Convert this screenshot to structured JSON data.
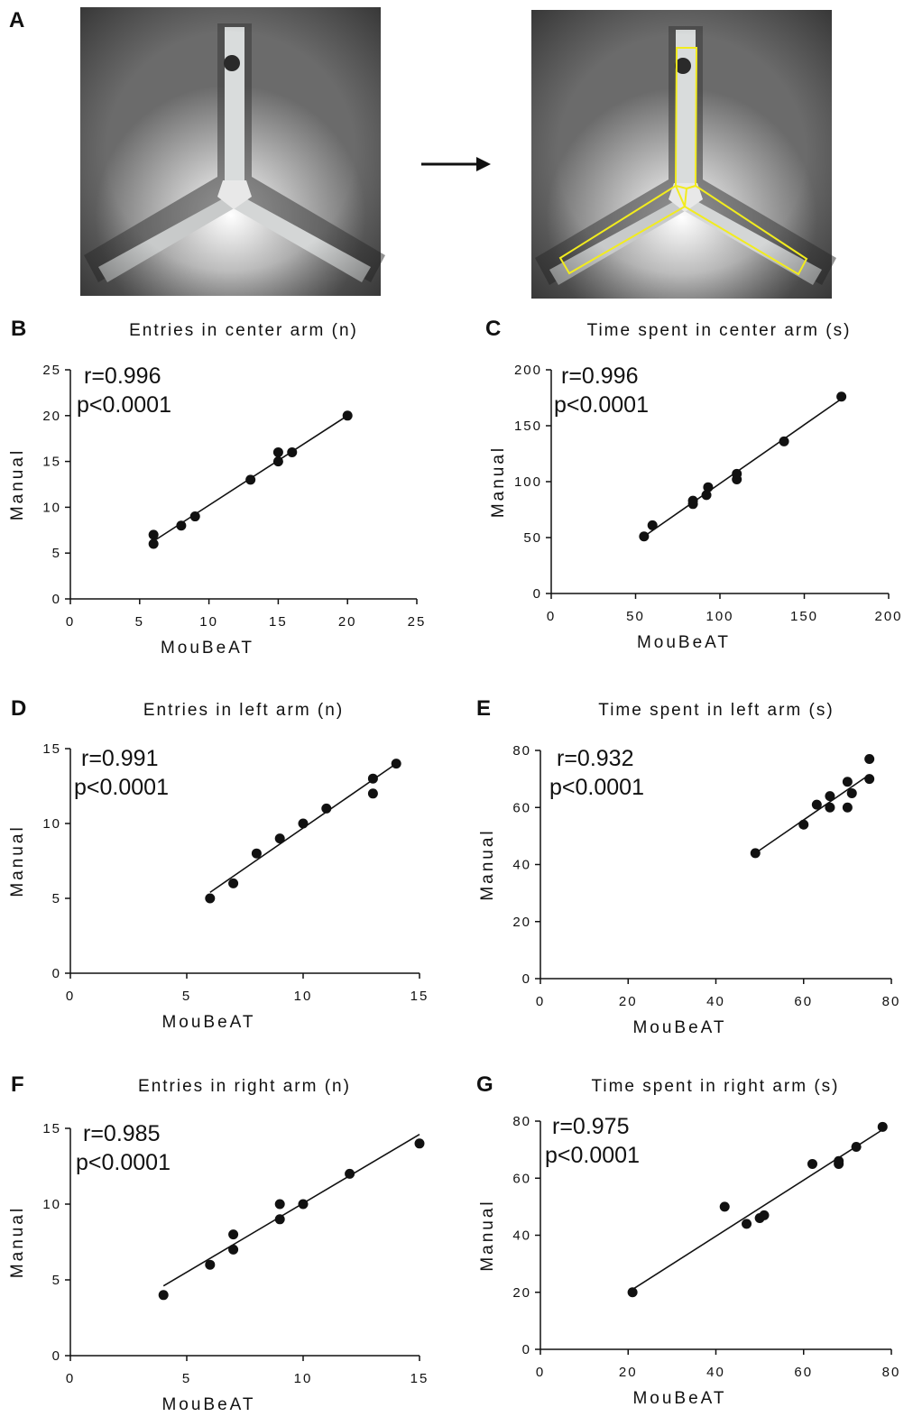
{
  "panel_a": {
    "letter": "A",
    "photos": [
      {
        "name": "ymaze-photo-raw",
        "overlay": false
      },
      {
        "name": "ymaze-photo-zones",
        "overlay": true
      }
    ],
    "arrow": "arrow-right-icon",
    "overlay_color": "#f2ec1e"
  },
  "chart_data": [
    {
      "panel": "B",
      "type": "scatter",
      "title": "Entries in center arm (n)",
      "xlabel": "MouBeAT",
      "ylabel": "Manual",
      "xlim": [
        0,
        25
      ],
      "ylim": [
        0,
        25
      ],
      "xticks": [
        0,
        5,
        10,
        15,
        20,
        25
      ],
      "yticks": [
        0,
        5,
        10,
        15,
        20,
        25
      ],
      "r": "r=0.996",
      "p": "p<0.0001",
      "x": [
        6,
        6,
        8,
        9,
        13,
        15,
        15,
        16,
        20
      ],
      "y": [
        7,
        6,
        8,
        9,
        13,
        16,
        15,
        16,
        20
      ],
      "fit": [
        [
          6,
          6.3
        ],
        [
          20,
          20
        ]
      ]
    },
    {
      "panel": "C",
      "type": "scatter",
      "title": "Time spent in center arm (s)",
      "xlabel": "MouBeAT",
      "ylabel": "Manual",
      "xlim": [
        0,
        200
      ],
      "ylim": [
        0,
        200
      ],
      "xticks": [
        0,
        50,
        100,
        150,
        200
      ],
      "yticks": [
        0,
        50,
        100,
        150,
        200
      ],
      "r": "r=0.996",
      "p": "p<0.0001",
      "x": [
        55,
        60,
        84,
        84,
        92,
        93,
        110,
        110,
        138,
        172
      ],
      "y": [
        51,
        61,
        80,
        83,
        88,
        95,
        102,
        107,
        136,
        176
      ],
      "fit": [
        [
          55,
          51
        ],
        [
          172,
          174
        ]
      ]
    },
    {
      "panel": "D",
      "type": "scatter",
      "title": "Entries in left arm (n)",
      "xlabel": "MouBeAT",
      "ylabel": "Manual",
      "xlim": [
        0,
        15
      ],
      "ylim": [
        0,
        15
      ],
      "xticks": [
        0,
        5,
        10,
        15
      ],
      "yticks": [
        0,
        5,
        10,
        15
      ],
      "r": "r=0.991",
      "p": "p<0.0001",
      "x": [
        6,
        7,
        8,
        9,
        10,
        11,
        13,
        13,
        14
      ],
      "y": [
        5,
        6,
        8,
        9,
        10,
        11,
        13,
        12,
        14
      ],
      "fit": [
        [
          6,
          5.4
        ],
        [
          14,
          14
        ]
      ]
    },
    {
      "panel": "E",
      "type": "scatter",
      "title": "Time spent in left arm (s)",
      "xlabel": "MouBeAT",
      "ylabel": "Manual",
      "xlim": [
        0,
        80
      ],
      "ylim": [
        0,
        80
      ],
      "xticks": [
        0,
        20,
        40,
        60,
        80
      ],
      "yticks": [
        0,
        20,
        40,
        60,
        80
      ],
      "r": "r=0.932",
      "p": "p<0.0001",
      "x": [
        49,
        60,
        63,
        66,
        66,
        70,
        70,
        71,
        75,
        75
      ],
      "y": [
        44,
        54,
        61,
        64,
        60,
        69,
        60,
        65,
        77,
        70
      ],
      "fit": [
        [
          49,
          44
        ],
        [
          75,
          71.5
        ]
      ]
    },
    {
      "panel": "F",
      "type": "scatter",
      "title": "Entries in right arm (n)",
      "xlabel": "MouBeAT",
      "ylabel": "Manual",
      "xlim": [
        0,
        15
      ],
      "ylim": [
        0,
        15
      ],
      "xticks": [
        0,
        5,
        10,
        15
      ],
      "yticks": [
        0,
        5,
        10,
        15
      ],
      "r": "r=0.985",
      "p": "p<0.0001",
      "x": [
        4,
        6,
        7,
        7,
        9,
        9,
        10,
        12,
        15
      ],
      "y": [
        4,
        6,
        8,
        7,
        10,
        9,
        10,
        12,
        14
      ],
      "fit": [
        [
          4,
          4.6
        ],
        [
          15,
          14.6
        ]
      ]
    },
    {
      "panel": "G",
      "type": "scatter",
      "title": "Time spent in right arm (s)",
      "xlabel": "MouBeAT",
      "ylabel": "Manual",
      "xlim": [
        0,
        80
      ],
      "ylim": [
        0,
        80
      ],
      "xticks": [
        0,
        20,
        40,
        60,
        80
      ],
      "yticks": [
        0,
        20,
        40,
        60,
        80
      ],
      "r": "r=0.975",
      "p": "p<0.0001",
      "x": [
        21,
        42,
        47,
        50,
        51,
        62,
        68,
        68,
        72,
        78
      ],
      "y": [
        20,
        50,
        44,
        46,
        47,
        65,
        65,
        66,
        71,
        78
      ],
      "fit": [
        [
          21,
          21
        ],
        [
          78,
          77
        ]
      ]
    }
  ]
}
